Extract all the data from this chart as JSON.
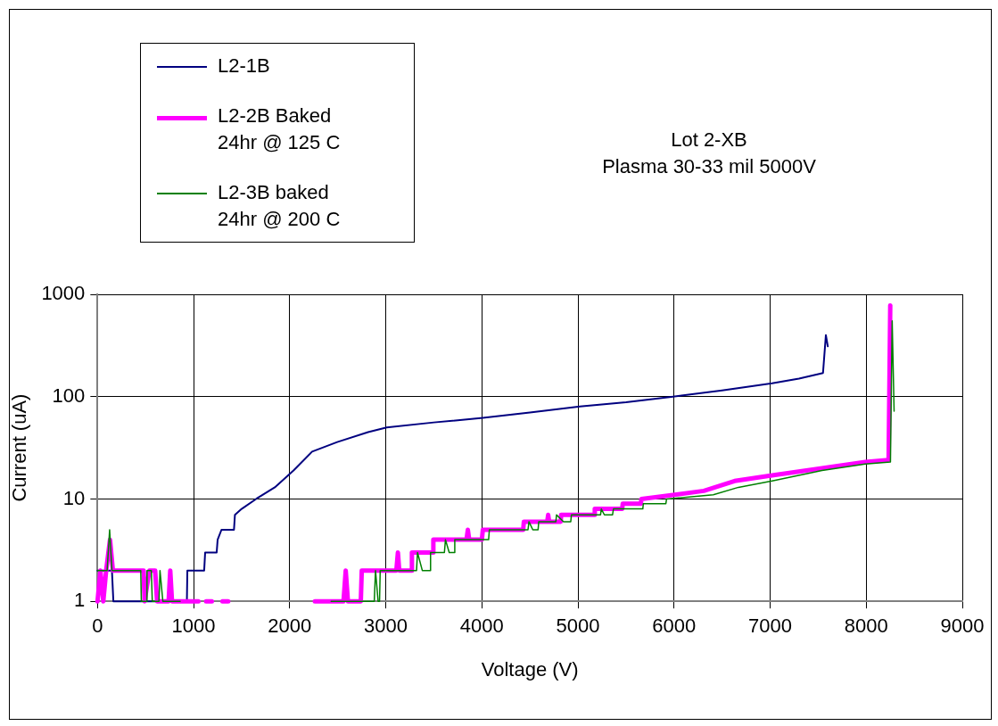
{
  "chart_data": {
    "type": "line",
    "title": "Lot 2-XB",
    "subtitle": "Plasma 30-33 mil 5000V",
    "xlabel": "Voltage (V)",
    "ylabel": "Current (uA)",
    "xlim": [
      0,
      9000
    ],
    "xticks": [
      0,
      1000,
      2000,
      3000,
      4000,
      5000,
      6000,
      7000,
      8000,
      9000
    ],
    "ylim": [
      1,
      1000
    ],
    "yticks": [
      1,
      10,
      100,
      1000
    ],
    "log": "y",
    "grid": true,
    "legend": "top left",
    "marker": "none",
    "line_style": "solid",
    "series": [
      {
        "name": "L2-1B",
        "color": "#000080",
        "x": [
          0,
          150,
          165,
          930,
          935,
          1110,
          1120,
          1240,
          1250,
          1290,
          1420,
          1430,
          1500,
          1650,
          1845,
          2040,
          2233,
          2495,
          2816,
          3010,
          3500,
          4010,
          4500,
          5020,
          5500,
          5990,
          6500,
          7020,
          7300,
          7550,
          7580,
          7600
        ],
        "values": [
          2,
          2,
          1,
          1,
          2,
          2,
          3,
          3,
          4,
          5,
          5,
          7,
          8,
          10,
          13,
          19,
          29,
          36,
          45,
          50,
          56,
          62,
          70,
          80,
          88,
          100,
          115,
          135,
          150,
          170,
          400,
          310
        ]
      },
      {
        "name": "L2-2B Baked 24hr @ 125 C",
        "color": "#ff00ff",
        "x": [
          0,
          30,
          60,
          90,
          130,
          160,
          480,
          490,
          540,
          600,
          620,
          740,
          757,
          775,
          1050,
          1100,
          1130,
          1190,
          1250,
          1300,
          1360,
          2000,
          2262,
          2560,
          2583,
          2606,
          2740,
          2750,
          3110,
          3126,
          3140,
          3265,
          3272,
          3490,
          3495,
          3840,
          3854,
          3868,
          4000,
          4010,
          4430,
          4437,
          4680,
          4690,
          4700,
          4820,
          4825,
          5170,
          5175,
          5460,
          5466,
          5655,
          5660,
          6310,
          6630,
          7020,
          7540,
          7990,
          8233,
          8250
        ],
        "values": [
          1,
          2,
          1,
          2,
          4,
          2,
          2,
          1,
          2,
          2,
          1,
          1,
          2,
          1,
          1,
          null,
          1,
          1,
          null,
          1,
          1,
          null,
          1,
          1,
          2,
          1,
          1,
          2,
          2,
          3,
          2,
          2,
          3,
          3,
          4,
          4,
          5,
          4,
          4,
          5,
          5,
          6,
          6,
          7,
          6,
          6,
          7,
          7,
          8,
          8,
          9,
          9,
          10,
          12,
          15,
          17,
          20,
          23,
          24,
          780
        ]
      },
      {
        "name": "L2-3B baked 24hr @ 200 C",
        "color": "#008000",
        "x": [
          0,
          100,
          126,
          150,
          450,
          456,
          510,
          515,
          560,
          570,
          640,
          650,
          680,
          860,
          1000,
          2430,
          2880,
          2893,
          2920,
          2935,
          2942,
          3320,
          3330,
          3380,
          3460,
          3466,
          3610,
          3621,
          3660,
          3710,
          3718,
          4070,
          4078,
          4480,
          4490,
          4530,
          4585,
          4592,
          4770,
          4777,
          4850,
          4925,
          4932,
          5235,
          5243,
          5275,
          5360,
          5369,
          5675,
          5680,
          5915,
          5922,
          6408,
          6670,
          7020,
          7540,
          7990,
          8252,
          8270,
          8290
        ],
        "values": [
          2,
          2,
          5,
          2,
          2,
          1,
          1,
          2,
          2,
          1,
          1,
          2,
          1,
          1,
          null,
          1,
          1,
          2,
          1,
          1,
          2,
          2,
          3,
          2,
          2,
          3,
          3,
          4,
          3,
          3,
          4,
          4,
          5,
          5,
          6,
          5,
          5,
          6,
          6,
          7,
          6,
          6,
          7,
          7,
          8,
          7,
          7,
          8,
          8,
          9,
          9,
          10,
          11,
          13,
          15,
          19,
          22,
          23,
          550,
          72
        ]
      }
    ]
  }
}
